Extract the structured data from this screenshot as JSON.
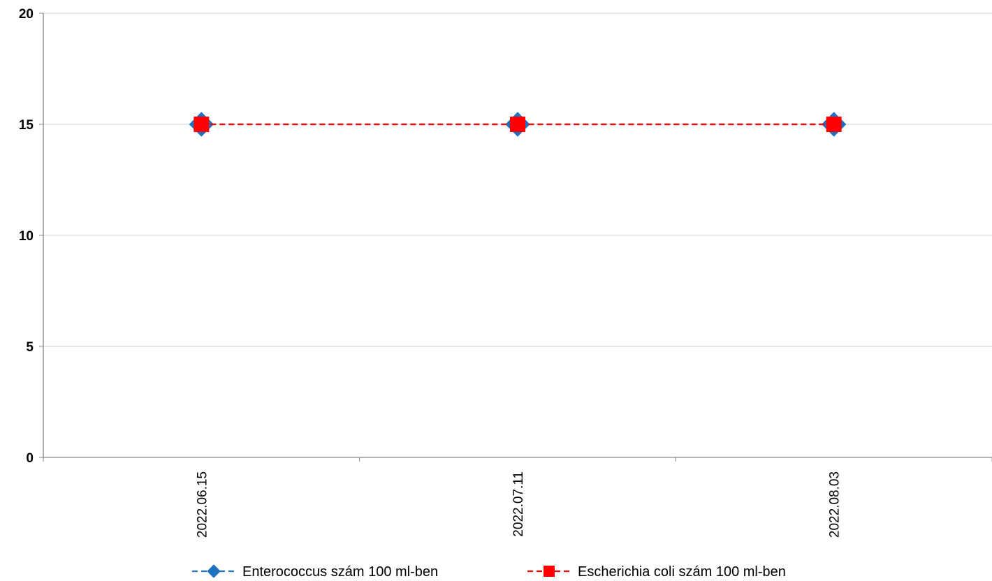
{
  "chart_data": {
    "type": "line",
    "title": "",
    "xlabel": "",
    "ylabel": "",
    "categories": [
      "2022.06.15",
      "2022.07.11",
      "2022.08.03"
    ],
    "ylim": [
      0,
      20
    ],
    "yticks": [
      0,
      5,
      10,
      15,
      20
    ],
    "grid": true,
    "legend_position": "bottom",
    "series": [
      {
        "name": "Enterococcus szám 100 ml-ben",
        "values": [
          15,
          15,
          15
        ],
        "color": "#1f72bf",
        "marker": "diamond",
        "line_style": "dashed"
      },
      {
        "name": "Escherichia coli szám 100 ml-ben",
        "values": [
          15,
          15,
          15
        ],
        "color": "#ff0000",
        "marker": "square",
        "line_style": "dashed"
      }
    ]
  },
  "colors": {
    "gridline": "#d9d9d9",
    "axis": "#868686"
  }
}
